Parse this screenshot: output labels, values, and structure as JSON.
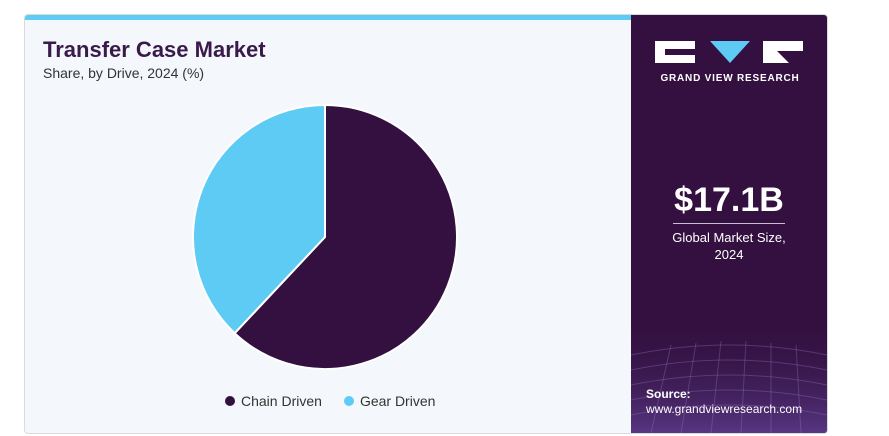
{
  "chart_data": {
    "type": "pie",
    "title": "Transfer Case Market",
    "subtitle": "Share, by Drive, 2024 (%)",
    "slices": [
      {
        "name": "Chain Driven",
        "value": 62,
        "color": "#33103f"
      },
      {
        "name": "Gear Driven",
        "value": 38,
        "color": "#5ecbf5"
      }
    ],
    "legend_position": "bottom"
  },
  "sidebar": {
    "brand": "GRAND VIEW RESEARCH",
    "market_size": "$17.1B",
    "market_size_desc_line1": "Global Market Size,",
    "market_size_desc_line2": "2024",
    "source_label": "Source:",
    "source_url": "www.grandviewresearch.com"
  }
}
